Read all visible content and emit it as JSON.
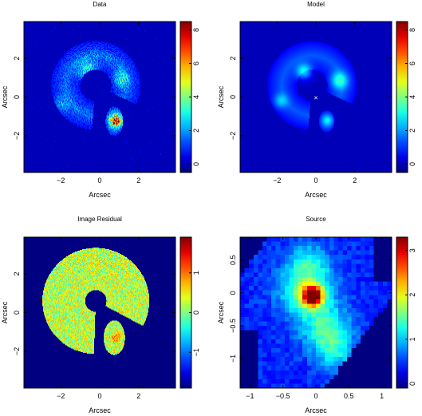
{
  "chart_data": [
    {
      "type": "heatmap",
      "title": "Data",
      "xlabel": "Arcsec",
      "ylabel": "Arcsec",
      "xlim": [
        -3.9,
        3.9
      ],
      "ylim": [
        -3.9,
        3.9
      ],
      "xticks": [
        -2,
        0,
        2
      ],
      "yticks": [
        -2,
        0,
        2
      ],
      "colorbar": {
        "min": -0.5,
        "max": 8.5,
        "ticks": [
          0,
          2,
          4,
          6,
          8
        ]
      },
      "colormap": "jet",
      "features": [
        {
          "shape": "arc",
          "cx": -0.2,
          "cy": 0.6,
          "r": 1.55,
          "width": 0.75,
          "from_deg": -25,
          "to_deg": 265,
          "level": 1.6
        },
        {
          "shape": "blob",
          "x": -0.6,
          "y": 1.4,
          "sigma": 0.35,
          "amp": 2.0
        },
        {
          "shape": "blob",
          "x": 1.1,
          "y": 0.95,
          "sigma": 0.3,
          "amp": 1.6
        },
        {
          "shape": "blob",
          "x": -2.0,
          "y": -0.4,
          "sigma": 0.3,
          "amp": 1.0
        },
        {
          "shape": "ellipse",
          "x": 0.75,
          "y": -1.25,
          "rx": 0.45,
          "ry": 0.75,
          "level": 1.8
        },
        {
          "shape": "blob",
          "x": 0.85,
          "y": -1.2,
          "sigma": 0.22,
          "amp": 6.5
        }
      ]
    },
    {
      "type": "heatmap",
      "title": "Model",
      "xlabel": "Arcsec",
      "ylabel": "Arcsec",
      "xlim": [
        -3.9,
        3.9
      ],
      "ylim": [
        -3.9,
        3.9
      ],
      "xticks": [
        -2,
        0,
        2
      ],
      "yticks": [
        -2,
        0,
        2
      ],
      "colorbar": {
        "min": -0.5,
        "max": 8.5,
        "ticks": [
          0,
          2,
          4,
          6,
          8
        ]
      },
      "colormap": "jet",
      "marker": {
        "symbol": "×",
        "x": 0.0,
        "y": -0.05
      },
      "features": [
        {
          "shape": "arc",
          "cx": -0.2,
          "cy": 0.6,
          "r": 1.55,
          "width": 0.75,
          "from_deg": -25,
          "to_deg": 265,
          "level": 1.4
        },
        {
          "shape": "blob",
          "x": -0.6,
          "y": 1.3,
          "sigma": 0.28,
          "amp": 2.4
        },
        {
          "shape": "blob",
          "x": 1.2,
          "y": 0.85,
          "sigma": 0.3,
          "amp": 2.2
        },
        {
          "shape": "blob",
          "x": -1.8,
          "y": -0.2,
          "sigma": 0.25,
          "amp": 1.4
        },
        {
          "shape": "ellipse",
          "x": 0.55,
          "y": -1.25,
          "rx": 0.4,
          "ry": 0.55,
          "level": 1.4
        },
        {
          "shape": "blob",
          "x": 0.6,
          "y": -1.2,
          "sigma": 0.2,
          "amp": 1.5
        }
      ]
    },
    {
      "type": "heatmap",
      "title": "Image Residual",
      "xlabel": "Arcsec",
      "ylabel": "Arcsec",
      "xlim": [
        -3.9,
        3.9
      ],
      "ylim": [
        -3.9,
        3.9
      ],
      "xticks": [
        -2,
        0,
        2
      ],
      "yticks": [
        -2,
        0,
        2
      ],
      "colorbar": {
        "min": -1.9,
        "max": 1.9,
        "ticks": [
          -1,
          0,
          1
        ]
      },
      "colormap": "jet",
      "mask_background": -1.9,
      "features": [
        {
          "shape": "arc",
          "cx": -0.2,
          "cy": 0.6,
          "r": 1.65,
          "width": 1.1,
          "from_deg": -28,
          "to_deg": 268,
          "level": 0.35
        },
        {
          "shape": "ellipse",
          "x": 0.75,
          "y": -1.3,
          "rx": 0.55,
          "ry": 0.9,
          "level": 0.4
        },
        {
          "shape": "blob",
          "x": 0.85,
          "y": -1.3,
          "sigma": 0.22,
          "amp": 1.1
        }
      ]
    },
    {
      "type": "heatmap",
      "title": "Source",
      "xlabel": "Arcsec",
      "ylabel": "Arcsec",
      "xlim": [
        -1.15,
        1.15
      ],
      "ylim": [
        -1.45,
        0.85
      ],
      "xticks": [
        -1,
        -0.5,
        0,
        0.5,
        1
      ],
      "yticks": [
        -1,
        -0.5,
        0,
        0.5
      ],
      "colorbar": {
        "min": -0.1,
        "max": 3.3,
        "ticks": [
          0,
          1,
          2,
          3
        ]
      },
      "colormap": "jet",
      "features": [
        {
          "shape": "blob",
          "x": -0.05,
          "y": -0.05,
          "sigma": 0.1,
          "amp": 2.6
        },
        {
          "shape": "blob",
          "x": -0.15,
          "y": 0.05,
          "sigma": 0.28,
          "amp": 1.2
        },
        {
          "shape": "blob",
          "x": 0.15,
          "y": -0.55,
          "sigma": 0.25,
          "amp": 0.9
        },
        {
          "shape": "blob",
          "x": 0.3,
          "y": -0.9,
          "sigma": 0.2,
          "amp": 0.6
        },
        {
          "shape": "blob",
          "x": -0.1,
          "y": 0.5,
          "sigma": 0.2,
          "amp": 0.5
        }
      ]
    }
  ]
}
